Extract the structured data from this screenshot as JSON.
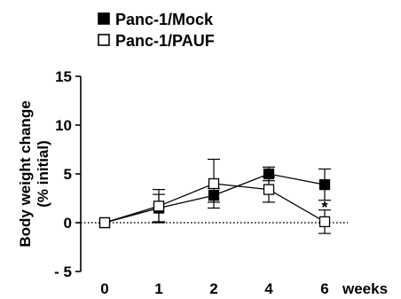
{
  "chart_data": {
    "type": "line",
    "title": "",
    "xlabel": "weeks",
    "ylabel_line1": "Body weight change",
    "ylabel_line2": "(% initial)",
    "categories": [
      "0",
      "1",
      "2",
      "4",
      "6"
    ],
    "ylim": [
      -5,
      15
    ],
    "yticks": [
      -5,
      0,
      5,
      10,
      15
    ],
    "ytick_labels": [
      "- 5",
      "0",
      "5",
      "10",
      "15"
    ],
    "grid": false,
    "legend_position": "top-left",
    "reference_line": 0,
    "series": [
      {
        "name": "Panc-1/Mock",
        "marker": "filled-square",
        "color": "#000000",
        "values": [
          0,
          1.5,
          2.8,
          5.0,
          3.9
        ],
        "error": [
          0,
          1.4,
          0.7,
          0.7,
          1.6
        ]
      },
      {
        "name": "Panc-1/PAUF",
        "marker": "open-square",
        "color": "#000000",
        "values": [
          0,
          1.7,
          4.0,
          3.4,
          0.1
        ],
        "error": [
          0,
          1.7,
          2.5,
          1.3,
          1.2
        ]
      }
    ],
    "annotations": [
      {
        "text": "*",
        "category": "6",
        "value": 1.8
      }
    ]
  }
}
